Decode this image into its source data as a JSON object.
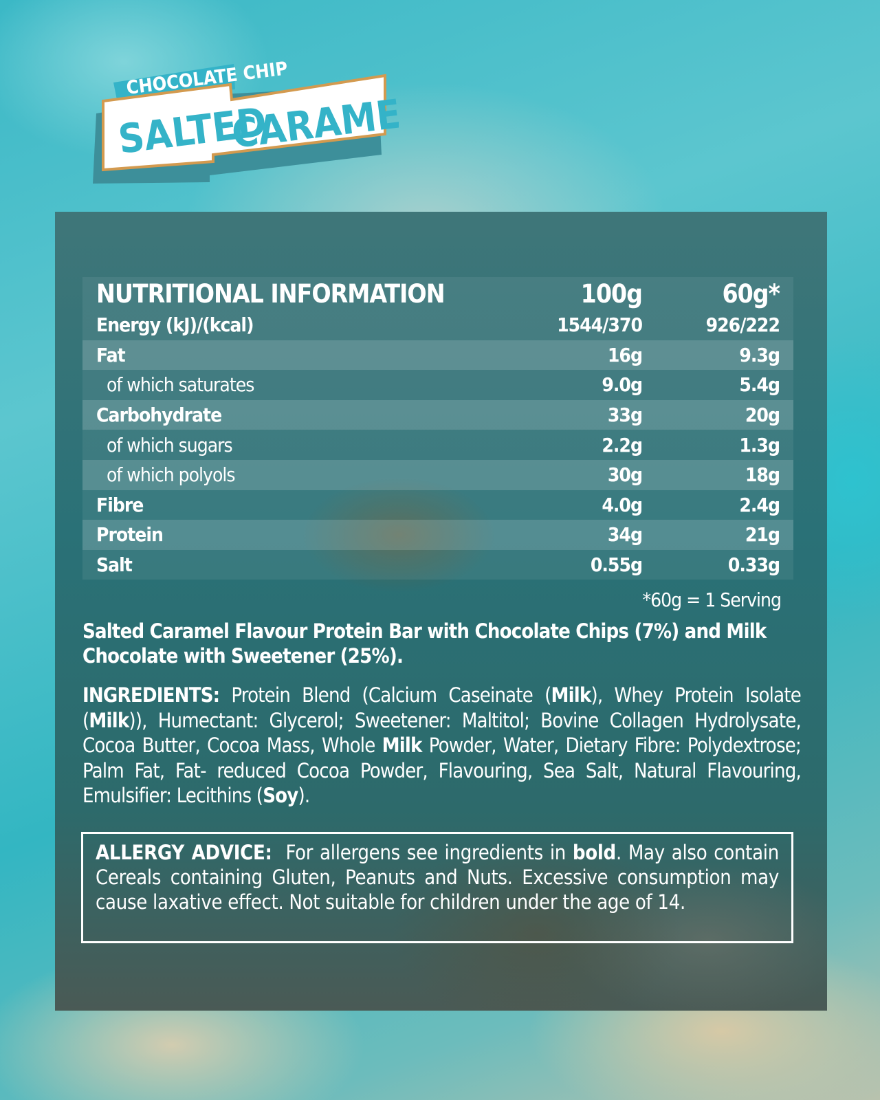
{
  "logo": {
    "line1": "CHOCOLATE CHIP",
    "word1": "SALTED",
    "word2": "CARAMEL",
    "colors": {
      "teal": "#34b3c8",
      "orange": "#d39a4f",
      "shadow": "#3d8f9a"
    }
  },
  "table": {
    "header": {
      "label": "NUTRITIONAL INFORMATION",
      "col1": "100g",
      "col2": "60g*"
    },
    "rows": [
      {
        "label": "Energy (kJ)/(kcal)",
        "v1": "1544/370",
        "v2": "926/222",
        "sub": false
      },
      {
        "label": "Fat",
        "v1": "16g",
        "v2": "9.3g",
        "sub": false
      },
      {
        "label": "of which saturates",
        "v1": "9.0g",
        "v2": "5.4g",
        "sub": true
      },
      {
        "label": "Carbohydrate",
        "v1": "33g",
        "v2": "20g",
        "sub": false
      },
      {
        "label": "of which sugars",
        "v1": "2.2g",
        "v2": "1.3g",
        "sub": true
      },
      {
        "label": "of which polyols",
        "v1": "30g",
        "v2": "18g",
        "sub": true
      },
      {
        "label": "Fibre",
        "v1": "4.0g",
        "v2": "2.4g",
        "sub": false
      },
      {
        "label": "Protein",
        "v1": "34g",
        "v2": "21g",
        "sub": false
      },
      {
        "label": "Salt",
        "v1": "0.55g",
        "v2": "0.33g",
        "sub": false
      }
    ],
    "serving_note": "*60g = 1 Serving"
  },
  "description": "Salted Caramel Flavour Protein Bar with Chocolate Chips (7%) and Milk Chocolate with Sweetener (25%).",
  "ingredients": [
    {
      "t": "INGREDIENTS:",
      "b": true
    },
    {
      "t": " Protein Blend (Calcium Caseinate (",
      "b": false
    },
    {
      "t": "Milk",
      "b": true
    },
    {
      "t": "), Whey Protein Isolate (",
      "b": false
    },
    {
      "t": "Milk",
      "b": true
    },
    {
      "t": ")), Humectant: Glycerol; Sweetener: Maltitol; Bovine Collagen Hydrolysate, Cocoa Butter, Cocoa Mass, Whole ",
      "b": false
    },
    {
      "t": "Milk",
      "b": true
    },
    {
      "t": " Powder, Water, Dietary Fibre: Polydextrose; Palm Fat, Fat- reduced Cocoa Powder, Flavouring, Sea Salt, Natural Flavouring, Emulsifier: Lecithins (",
      "b": false
    },
    {
      "t": "Soy",
      "b": true
    },
    {
      "t": ").",
      "b": false
    }
  ],
  "allergy": [
    {
      "t": "ALLERGY ADVICE:",
      "b": true
    },
    {
      "t": "  For allergens see ingredients in ",
      "b": false
    },
    {
      "t": "bold",
      "b": true
    },
    {
      "t": ". May also contain Cereals containing Gluten, Peanuts and Nuts. Excessive consumption may cause laxative effect. Not suitable for children under the age of 14.",
      "b": false
    }
  ]
}
